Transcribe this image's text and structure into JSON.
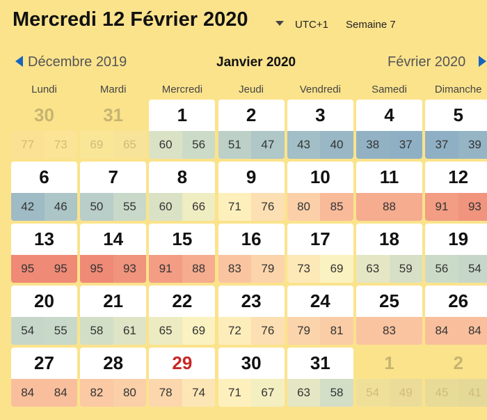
{
  "header": {
    "title": "Mercredi 12 Février 2020",
    "timezone": "UTC+1",
    "week": "Semaine 7"
  },
  "nav": {
    "previous": "Décembre 2019",
    "current": "Janvier 2020",
    "next": "Février 2020"
  },
  "weekdays": [
    "Lundi",
    "Mardi",
    "Mercredi",
    "Jeudi",
    "Vendredi",
    "Samedi",
    "Dimanche"
  ],
  "weeks": [
    [
      {
        "day": 30,
        "values": [
          77,
          73
        ],
        "other_month": true
      },
      {
        "day": 31,
        "values": [
          69,
          65
        ],
        "other_month": true
      },
      {
        "day": 1,
        "values": [
          60,
          56
        ]
      },
      {
        "day": 2,
        "values": [
          51,
          47
        ]
      },
      {
        "day": 3,
        "values": [
          43,
          40
        ]
      },
      {
        "day": 4,
        "values": [
          38,
          37
        ]
      },
      {
        "day": 5,
        "values": [
          37,
          39
        ]
      }
    ],
    [
      {
        "day": 6,
        "values": [
          42,
          46
        ]
      },
      {
        "day": 7,
        "values": [
          50,
          55
        ]
      },
      {
        "day": 8,
        "values": [
          60,
          66
        ]
      },
      {
        "day": 9,
        "values": [
          71,
          76
        ]
      },
      {
        "day": 10,
        "values": [
          80,
          85
        ]
      },
      {
        "day": 11,
        "values": [
          88
        ]
      },
      {
        "day": 12,
        "values": [
          91,
          93
        ]
      }
    ],
    [
      {
        "day": 13,
        "values": [
          95,
          95
        ]
      },
      {
        "day": 14,
        "values": [
          95,
          93
        ]
      },
      {
        "day": 15,
        "values": [
          91,
          88
        ]
      },
      {
        "day": 16,
        "values": [
          83,
          79
        ]
      },
      {
        "day": 17,
        "values": [
          73,
          69
        ]
      },
      {
        "day": 18,
        "values": [
          63,
          59
        ]
      },
      {
        "day": 19,
        "values": [
          56,
          54
        ]
      }
    ],
    [
      {
        "day": 20,
        "values": [
          54,
          55
        ]
      },
      {
        "day": 21,
        "values": [
          58,
          61
        ]
      },
      {
        "day": 22,
        "values": [
          65,
          69
        ]
      },
      {
        "day": 23,
        "values": [
          72,
          76
        ]
      },
      {
        "day": 24,
        "values": [
          79,
          81
        ]
      },
      {
        "day": 25,
        "values": [
          83
        ]
      },
      {
        "day": 26,
        "values": [
          84,
          84
        ]
      }
    ],
    [
      {
        "day": 27,
        "values": [
          84,
          84
        ]
      },
      {
        "day": 28,
        "values": [
          82,
          80
        ]
      },
      {
        "day": 29,
        "values": [
          78,
          74
        ],
        "highlight": true
      },
      {
        "day": 30,
        "values": [
          71,
          67
        ]
      },
      {
        "day": 31,
        "values": [
          63,
          58
        ]
      },
      {
        "day": 1,
        "values": [
          54,
          49
        ],
        "other_month": true
      },
      {
        "day": 2,
        "values": [
          45,
          41
        ],
        "other_month": true
      }
    ]
  ]
}
